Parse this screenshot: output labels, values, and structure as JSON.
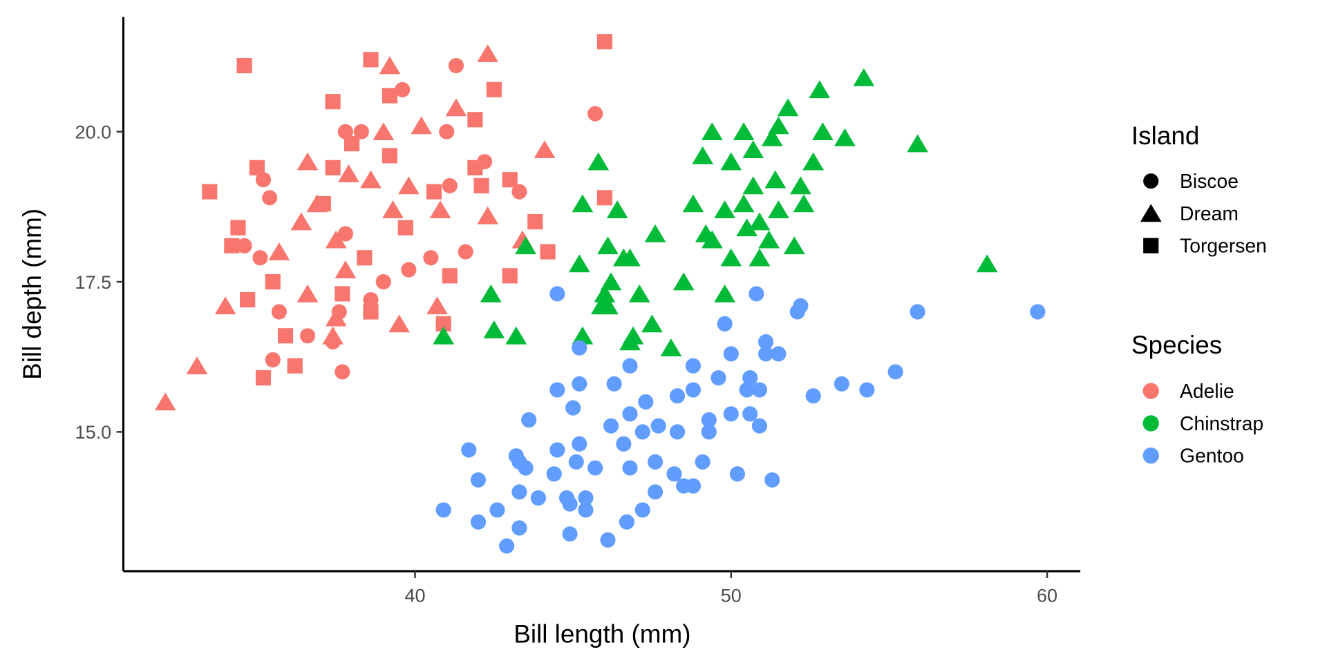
{
  "chart_data": {
    "type": "scatter",
    "title": "",
    "xlabel": "Bill length (mm)",
    "ylabel": "Bill depth (mm)",
    "xlim": [
      30.77,
      61.05
    ],
    "ylim": [
      12.68,
      21.91
    ],
    "xticks": [
      40,
      50,
      60
    ],
    "xtick_labels": [
      "40",
      "50",
      "60"
    ],
    "yticks": [
      15,
      17.5,
      20
    ],
    "ytick_labels": [
      "15.0",
      "17.5",
      "20.0"
    ],
    "grid": false,
    "legend_placement": "right",
    "legends": {
      "shape": {
        "title": "Island",
        "entries": [
          {
            "code": "B",
            "label": "Biscoe",
            "shape": "circle"
          },
          {
            "code": "D",
            "label": "Dream",
            "shape": "triangle"
          },
          {
            "code": "T",
            "label": "Torgersen",
            "shape": "square"
          }
        ]
      },
      "color": {
        "title": "Species",
        "entries": [
          {
            "label": "Adelie",
            "color": "#F8766D"
          },
          {
            "label": "Chinstrap",
            "color": "#00BA38"
          },
          {
            "label": "Gentoo",
            "color": "#619CFF"
          }
        ]
      }
    },
    "series": [
      {
        "name": "Adelie",
        "color": "#F8766D",
        "points": [
          [
            41.3,
            21.1,
            "B"
          ],
          [
            39.6,
            20.7,
            "B"
          ],
          [
            45.7,
            20.3,
            "B"
          ],
          [
            37.8,
            20.0,
            "B"
          ],
          [
            38.3,
            20.0,
            "B"
          ],
          [
            41.0,
            20.0,
            "B"
          ],
          [
            35.2,
            19.2,
            "B"
          ],
          [
            35.4,
            18.9,
            "B"
          ],
          [
            34.6,
            18.1,
            "B"
          ],
          [
            35.1,
            17.9,
            "B"
          ],
          [
            35.7,
            17.0,
            "B"
          ],
          [
            35.5,
            16.2,
            "B"
          ],
          [
            36.6,
            16.6,
            "B"
          ],
          [
            37.4,
            16.5,
            "B"
          ],
          [
            37.7,
            16.0,
            "B"
          ],
          [
            37.8,
            18.3,
            "B"
          ],
          [
            39.0,
            17.5,
            "B"
          ],
          [
            40.5,
            17.9,
            "B"
          ],
          [
            41.6,
            18.0,
            "B"
          ],
          [
            41.1,
            19.1,
            "B"
          ],
          [
            43.3,
            19.0,
            "B"
          ],
          [
            42.2,
            19.5,
            "B"
          ],
          [
            38.6,
            17.2,
            "B"
          ],
          [
            37.6,
            17.0,
            "B"
          ],
          [
            39.8,
            17.7,
            "B"
          ],
          [
            32.1,
            15.5,
            "D"
          ],
          [
            33.1,
            16.1,
            "D"
          ],
          [
            34.0,
            17.1,
            "D"
          ],
          [
            39.2,
            21.1,
            "D"
          ],
          [
            42.3,
            21.3,
            "D"
          ],
          [
            41.3,
            20.4,
            "D"
          ],
          [
            40.2,
            20.1,
            "D"
          ],
          [
            39.0,
            20.0,
            "D"
          ],
          [
            44.1,
            19.7,
            "D"
          ],
          [
            36.6,
            19.5,
            "D"
          ],
          [
            37.9,
            19.3,
            "D"
          ],
          [
            38.6,
            19.2,
            "D"
          ],
          [
            39.8,
            19.1,
            "D"
          ],
          [
            36.4,
            18.5,
            "D"
          ],
          [
            37.5,
            18.2,
            "D"
          ],
          [
            35.7,
            18.0,
            "D"
          ],
          [
            37.8,
            17.7,
            "D"
          ],
          [
            36.6,
            17.3,
            "D"
          ],
          [
            37.5,
            16.9,
            "D"
          ],
          [
            37.4,
            16.6,
            "D"
          ],
          [
            39.5,
            16.8,
            "D"
          ],
          [
            40.7,
            17.1,
            "D"
          ],
          [
            42.3,
            18.6,
            "D"
          ],
          [
            43.4,
            18.2,
            "D"
          ],
          [
            39.3,
            18.7,
            "D"
          ],
          [
            40.8,
            18.7,
            "D"
          ],
          [
            36.9,
            18.8,
            "D"
          ],
          [
            34.6,
            21.1,
            "T"
          ],
          [
            38.6,
            21.2,
            "T"
          ],
          [
            46.0,
            21.5,
            "T"
          ],
          [
            42.5,
            20.7,
            "T"
          ],
          [
            37.4,
            20.5,
            "T"
          ],
          [
            39.2,
            20.6,
            "T"
          ],
          [
            41.9,
            20.2,
            "T"
          ],
          [
            39.2,
            19.6,
            "T"
          ],
          [
            33.5,
            19.0,
            "T"
          ],
          [
            35.0,
            19.4,
            "T"
          ],
          [
            34.4,
            18.4,
            "T"
          ],
          [
            34.2,
            18.1,
            "T"
          ],
          [
            34.7,
            17.2,
            "T"
          ],
          [
            35.5,
            17.5,
            "T"
          ],
          [
            35.2,
            15.9,
            "T"
          ],
          [
            36.2,
            16.1,
            "T"
          ],
          [
            35.9,
            16.6,
            "T"
          ],
          [
            37.1,
            18.8,
            "T"
          ],
          [
            38.0,
            19.8,
            "T"
          ],
          [
            37.4,
            19.4,
            "T"
          ],
          [
            38.4,
            17.9,
            "T"
          ],
          [
            39.7,
            18.4,
            "T"
          ],
          [
            40.6,
            19.0,
            "T"
          ],
          [
            41.9,
            19.4,
            "T"
          ],
          [
            43.0,
            19.2,
            "T"
          ],
          [
            44.2,
            18.0,
            "T"
          ],
          [
            43.0,
            17.6,
            "T"
          ],
          [
            41.1,
            17.6,
            "T"
          ],
          [
            40.9,
            16.8,
            "T"
          ],
          [
            46.0,
            18.9,
            "T"
          ],
          [
            37.7,
            17.3,
            "T"
          ],
          [
            38.6,
            17.0,
            "T"
          ],
          [
            42.1,
            19.1,
            "T"
          ],
          [
            43.8,
            18.5,
            "T"
          ]
        ]
      },
      {
        "name": "Chinstrap",
        "color": "#00BA38",
        "points": [
          [
            54.2,
            20.9,
            "D"
          ],
          [
            52.8,
            20.7,
            "D"
          ],
          [
            51.8,
            20.4,
            "D"
          ],
          [
            51.5,
            20.1,
            "D"
          ],
          [
            50.4,
            20.0,
            "D"
          ],
          [
            49.4,
            20.0,
            "D"
          ],
          [
            52.9,
            20.0,
            "D"
          ],
          [
            53.6,
            19.9,
            "D"
          ],
          [
            55.9,
            19.8,
            "D"
          ],
          [
            51.3,
            19.9,
            "D"
          ],
          [
            50.7,
            19.7,
            "D"
          ],
          [
            49.1,
            19.6,
            "D"
          ],
          [
            50.0,
            19.5,
            "D"
          ],
          [
            52.6,
            19.5,
            "D"
          ],
          [
            45.8,
            19.5,
            "D"
          ],
          [
            50.7,
            19.1,
            "D"
          ],
          [
            51.4,
            19.2,
            "D"
          ],
          [
            52.2,
            19.1,
            "D"
          ],
          [
            52.3,
            18.8,
            "D"
          ],
          [
            50.4,
            18.8,
            "D"
          ],
          [
            49.8,
            18.7,
            "D"
          ],
          [
            48.8,
            18.8,
            "D"
          ],
          [
            51.5,
            18.7,
            "D"
          ],
          [
            50.9,
            18.5,
            "D"
          ],
          [
            50.5,
            18.4,
            "D"
          ],
          [
            49.4,
            18.2,
            "D"
          ],
          [
            49.2,
            18.3,
            "D"
          ],
          [
            47.6,
            18.3,
            "D"
          ],
          [
            52.0,
            18.1,
            "D"
          ],
          [
            51.2,
            18.2,
            "D"
          ],
          [
            45.3,
            18.8,
            "D"
          ],
          [
            46.4,
            18.7,
            "D"
          ],
          [
            46.1,
            18.1,
            "D"
          ],
          [
            46.6,
            17.9,
            "D"
          ],
          [
            46.8,
            17.9,
            "D"
          ],
          [
            50.0,
            17.9,
            "D"
          ],
          [
            50.9,
            17.9,
            "D"
          ],
          [
            45.2,
            17.8,
            "D"
          ],
          [
            58.1,
            17.8,
            "D"
          ],
          [
            48.5,
            17.5,
            "D"
          ],
          [
            46.2,
            17.5,
            "D"
          ],
          [
            42.4,
            17.3,
            "D"
          ],
          [
            46.0,
            17.3,
            "D"
          ],
          [
            47.1,
            17.3,
            "D"
          ],
          [
            49.8,
            17.3,
            "D"
          ],
          [
            45.9,
            17.1,
            "D"
          ],
          [
            46.1,
            17.1,
            "D"
          ],
          [
            47.5,
            16.8,
            "D"
          ],
          [
            46.9,
            16.6,
            "D"
          ],
          [
            46.8,
            16.5,
            "D"
          ],
          [
            42.5,
            16.7,
            "D"
          ],
          [
            43.2,
            16.6,
            "D"
          ],
          [
            40.9,
            16.6,
            "D"
          ],
          [
            45.3,
            16.6,
            "D"
          ],
          [
            48.1,
            16.4,
            "D"
          ],
          [
            43.5,
            18.1,
            "D"
          ]
        ]
      },
      {
        "name": "Gentoo",
        "color": "#619CFF",
        "points": [
          [
            59.7,
            17.0,
            "B"
          ],
          [
            55.9,
            17.0,
            "B"
          ],
          [
            52.2,
            17.1,
            "B"
          ],
          [
            52.1,
            17.0,
            "B"
          ],
          [
            50.8,
            17.3,
            "B"
          ],
          [
            44.5,
            17.3,
            "B"
          ],
          [
            49.8,
            16.8,
            "B"
          ],
          [
            51.1,
            16.5,
            "B"
          ],
          [
            51.5,
            16.3,
            "B"
          ],
          [
            51.1,
            16.3,
            "B"
          ],
          [
            50.0,
            16.3,
            "B"
          ],
          [
            45.2,
            16.4,
            "B"
          ],
          [
            55.2,
            16.0,
            "B"
          ],
          [
            53.5,
            15.8,
            "B"
          ],
          [
            54.3,
            15.7,
            "B"
          ],
          [
            52.6,
            15.6,
            "B"
          ],
          [
            50.6,
            15.9,
            "B"
          ],
          [
            50.9,
            15.7,
            "B"
          ],
          [
            50.5,
            15.7,
            "B"
          ],
          [
            49.6,
            15.9,
            "B"
          ],
          [
            48.8,
            16.1,
            "B"
          ],
          [
            46.8,
            16.1,
            "B"
          ],
          [
            46.3,
            15.8,
            "B"
          ],
          [
            45.2,
            15.8,
            "B"
          ],
          [
            44.5,
            15.7,
            "B"
          ],
          [
            48.3,
            15.6,
            "B"
          ],
          [
            48.8,
            15.7,
            "B"
          ],
          [
            47.3,
            15.5,
            "B"
          ],
          [
            46.8,
            15.3,
            "B"
          ],
          [
            45.0,
            15.4,
            "B"
          ],
          [
            43.6,
            15.2,
            "B"
          ],
          [
            49.3,
            15.2,
            "B"
          ],
          [
            50.0,
            15.3,
            "B"
          ],
          [
            50.6,
            15.3,
            "B"
          ],
          [
            50.9,
            15.1,
            "B"
          ],
          [
            47.2,
            15.0,
            "B"
          ],
          [
            47.7,
            15.1,
            "B"
          ],
          [
            48.3,
            15.0,
            "B"
          ],
          [
            49.3,
            15.0,
            "B"
          ],
          [
            46.2,
            15.1,
            "B"
          ],
          [
            46.6,
            14.8,
            "B"
          ],
          [
            45.2,
            14.8,
            "B"
          ],
          [
            44.5,
            14.7,
            "B"
          ],
          [
            41.7,
            14.7,
            "B"
          ],
          [
            43.2,
            14.6,
            "B"
          ],
          [
            43.3,
            14.5,
            "B"
          ],
          [
            43.5,
            14.4,
            "B"
          ],
          [
            44.4,
            14.3,
            "B"
          ],
          [
            45.1,
            14.5,
            "B"
          ],
          [
            45.7,
            14.4,
            "B"
          ],
          [
            46.8,
            14.4,
            "B"
          ],
          [
            47.6,
            14.5,
            "B"
          ],
          [
            48.2,
            14.3,
            "B"
          ],
          [
            49.1,
            14.5,
            "B"
          ],
          [
            50.2,
            14.3,
            "B"
          ],
          [
            51.3,
            14.2,
            "B"
          ],
          [
            42.0,
            14.2,
            "B"
          ],
          [
            43.3,
            14.0,
            "B"
          ],
          [
            43.9,
            13.9,
            "B"
          ],
          [
            44.8,
            13.9,
            "B"
          ],
          [
            45.4,
            13.9,
            "B"
          ],
          [
            47.6,
            14.0,
            "B"
          ],
          [
            48.5,
            14.1,
            "B"
          ],
          [
            48.8,
            14.1,
            "B"
          ],
          [
            40.9,
            13.7,
            "B"
          ],
          [
            42.0,
            13.5,
            "B"
          ],
          [
            42.6,
            13.7,
            "B"
          ],
          [
            44.9,
            13.8,
            "B"
          ],
          [
            45.4,
            13.7,
            "B"
          ],
          [
            47.2,
            13.7,
            "B"
          ],
          [
            46.7,
            13.5,
            "B"
          ],
          [
            43.3,
            13.4,
            "B"
          ],
          [
            44.9,
            13.3,
            "B"
          ],
          [
            46.1,
            13.2,
            "B"
          ],
          [
            42.9,
            13.1,
            "B"
          ]
        ]
      }
    ]
  }
}
